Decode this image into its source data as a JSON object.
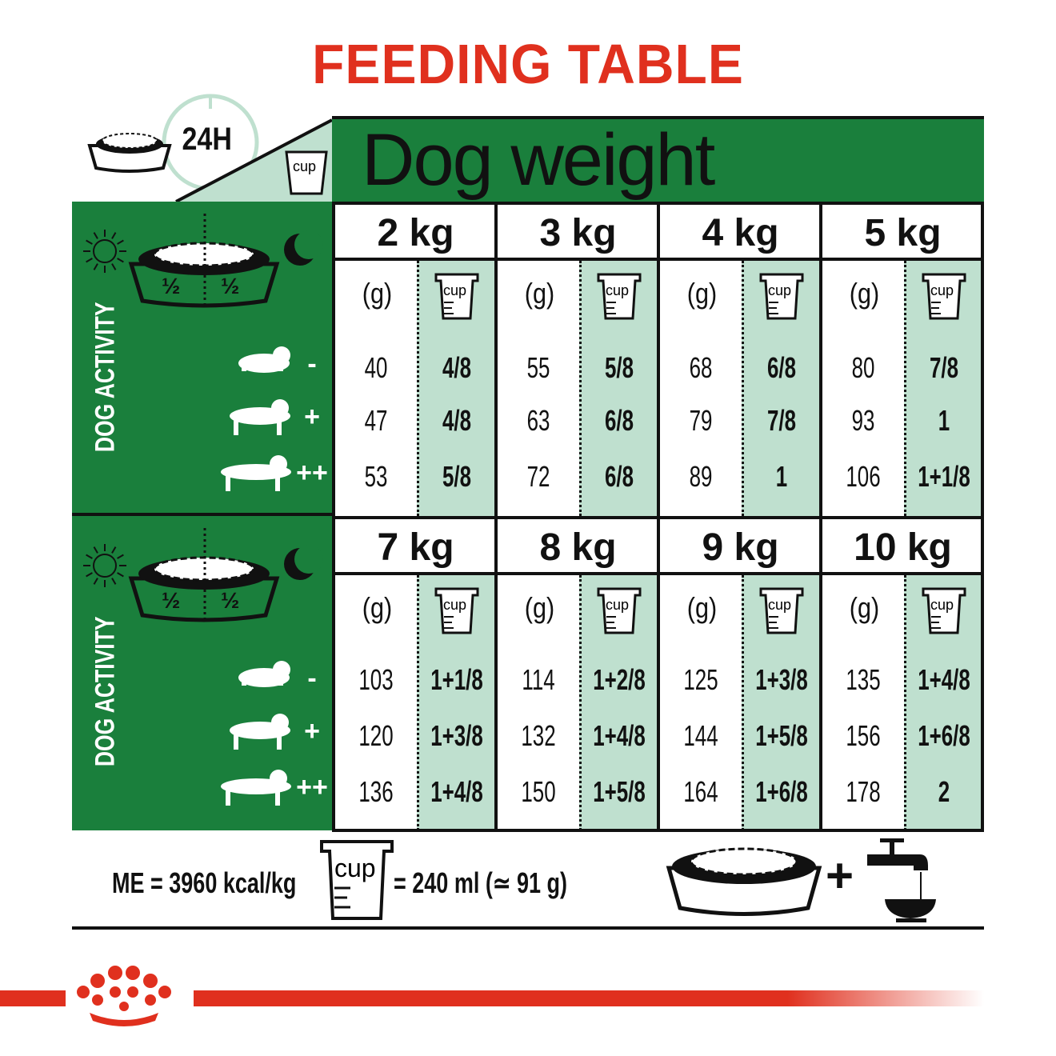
{
  "title": "FEEDING TABLE",
  "header": {
    "time_label": "24H",
    "cup_label": "cup",
    "dog_weight": "Dog weight"
  },
  "panel": {
    "activity_label": "DOG ACTIVITY",
    "halves": [
      "½",
      "½"
    ],
    "activity_levels": [
      "-",
      "+",
      "++"
    ]
  },
  "gram_label": "(g)",
  "weights": [
    {
      "weight": "2 kg",
      "grams": [
        "40",
        "47",
        "53"
      ],
      "cups": [
        "4/8",
        "4/8",
        "5/8"
      ]
    },
    {
      "weight": "3 kg",
      "grams": [
        "55",
        "63",
        "72"
      ],
      "cups": [
        "5/8",
        "6/8",
        "6/8"
      ]
    },
    {
      "weight": "4 kg",
      "grams": [
        "68",
        "79",
        "89"
      ],
      "cups": [
        "6/8",
        "7/8",
        "1"
      ]
    },
    {
      "weight": "5 kg",
      "grams": [
        "80",
        "93",
        "106"
      ],
      "cups": [
        "7/8",
        "1",
        "1+1/8"
      ]
    },
    {
      "weight": "7 kg",
      "grams": [
        "103",
        "120",
        "136"
      ],
      "cups": [
        "1+1/8",
        "1+3/8",
        "1+4/8"
      ]
    },
    {
      "weight": "8 kg",
      "grams": [
        "114",
        "132",
        "150"
      ],
      "cups": [
        "1+2/8",
        "1+4/8",
        "1+5/8"
      ]
    },
    {
      "weight": "9 kg",
      "grams": [
        "125",
        "144",
        "164"
      ],
      "cups": [
        "1+3/8",
        "1+5/8",
        "1+6/8"
      ]
    },
    {
      "weight": "10 kg",
      "grams": [
        "135",
        "156",
        "178"
      ],
      "cups": [
        "1+4/8",
        "1+6/8",
        "2"
      ]
    }
  ],
  "footer": {
    "energy": "ME = 3960 kcal/kg",
    "cup_label": "cup",
    "cup_equivalence": "= 240 ml (≃ 91 g)",
    "plus": "+"
  },
  "colors": {
    "brand_red": "#e0301e",
    "green": "#1a7f3c",
    "light_green": "#bfe0cf"
  }
}
